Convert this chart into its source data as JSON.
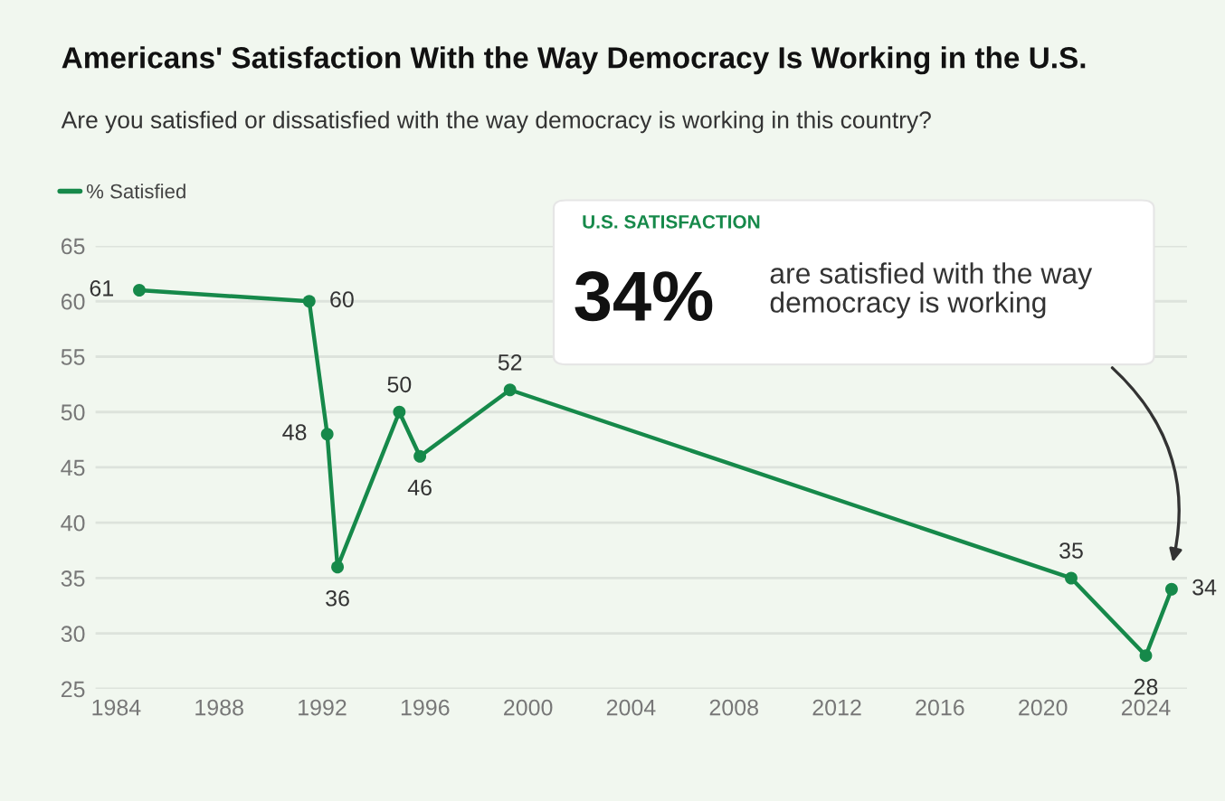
{
  "chart_data": {
    "type": "line",
    "title": "Americans' Satisfaction With the Way Democracy Is Working in the U.S.",
    "subtitle": "Are you satisfied or dissatisfied with the way democracy is working in this country?",
    "x": [
      1984.9,
      1991.5,
      1992.2,
      1992.6,
      1995.0,
      1995.8,
      1999.3,
      2021.1,
      2024.0,
      2025.0
    ],
    "series": [
      {
        "name": "% Satisfied",
        "color": "#16894a",
        "values": [
          61,
          60,
          48,
          36,
          50,
          46,
          52,
          35,
          28,
          34
        ]
      }
    ],
    "data_labels": true,
    "marker": "circle",
    "grid": "y",
    "legend": "top left",
    "xlim": [
      1983.2,
      2025.6
    ],
    "xticks": [
      1984,
      1988,
      1992,
      1996,
      2000,
      2004,
      2008,
      2012,
      2016,
      2020,
      2024
    ],
    "ylim": [
      25,
      65
    ],
    "yticks": [
      25,
      30,
      35,
      40,
      45,
      50,
      55,
      60,
      65
    ],
    "annotations": [
      "U.S. SATISFACTION",
      "34%",
      "are satisfied with the way\ndemocracy is working"
    ]
  }
}
